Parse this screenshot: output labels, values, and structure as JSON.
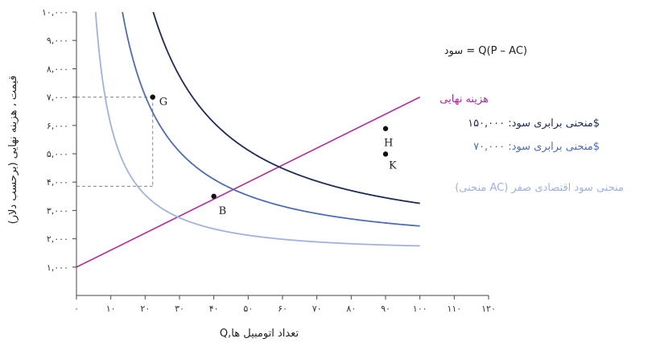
{
  "chart_data": {
    "type": "line",
    "xlabel": "Q,تعداد اتومبیل ها",
    "ylabel": "قیمت ، هزینه نهایی (برحسب دلار)",
    "xlim": [
      0,
      120
    ],
    "ylim": [
      0,
      10000
    ],
    "x_ticks": [
      0,
      10,
      20,
      30,
      40,
      50,
      60,
      70,
      80,
      90,
      100,
      110,
      120
    ],
    "x_tick_labels": [
      "۰",
      "۱۰",
      "۲۰",
      "۳۰",
      "۴۰",
      "۵۰",
      "۶۰",
      "۷۰",
      "۸۰",
      "۹۰",
      "۱۰۰",
      "۱۱۰",
      "۱۲۰"
    ],
    "y_ticks": [
      1000,
      2000,
      3000,
      4000,
      5000,
      6000,
      7000,
      8000,
      9000,
      10000
    ],
    "y_tick_labels": [
      "۱,۰۰۰",
      "۲,۰۰۰",
      "۳,۰۰۰",
      "۴,۰۰۰",
      "۵,۰۰۰",
      "۶,۰۰۰",
      "۷,۰۰۰",
      "۸,۰۰۰",
      "۹,۰۰۰",
      "۱۰,۰۰۰"
    ],
    "formula": "سود = Q(P – AC)",
    "series": [
      {
        "name": "هزینه نهایی",
        "kind": "line",
        "color": "#b5279a",
        "x": [
          0,
          100
        ],
        "y": [
          1000,
          7000
        ]
      },
      {
        "name": "منحنی برابری سود: ۱۵۰,۰۰۰$",
        "kind": "isoprofit",
        "profit": 150000,
        "ac_fixed": 50000,
        "ac_const": 1000,
        "color": "#1c2a5c",
        "x_start": 14,
        "x_end": 100
      },
      {
        "name": "منحنی برابری سود: ۷۰,۰۰۰$",
        "kind": "isoprofit",
        "profit": 70000,
        "ac_fixed": 50000,
        "ac_const": 1000,
        "color": "#4d6cb8",
        "x_start": 9.5,
        "x_end": 100
      },
      {
        "name": "(منحنی AC) منحنی سود اقتصادی صفر",
        "kind": "isoprofit",
        "profit": 0,
        "ac_fixed": 50000,
        "ac_const": 1000,
        "color": "#9fb2e2",
        "x_start": 5.5,
        "x_end": 100
      }
    ],
    "points": [
      {
        "label": "G",
        "x": 22.2,
        "y": 7000,
        "curve": 2
      },
      {
        "label": "H",
        "x": 90,
        "y": 5889,
        "curve": 1
      },
      {
        "label": "K",
        "x": 90,
        "y": 4989,
        "curve": 2
      },
      {
        "label": "B",
        "x": 40,
        "y": 3500,
        "curve": 3
      }
    ],
    "guides": [
      {
        "from": [
          0,
          7000
        ],
        "to": [
          22.2,
          7000
        ]
      },
      {
        "from": [
          22.2,
          7000
        ],
        "to": [
          22.2,
          3852
        ]
      },
      {
        "from": [
          0,
          3852
        ],
        "to": [
          22.2,
          3852
        ]
      }
    ]
  }
}
